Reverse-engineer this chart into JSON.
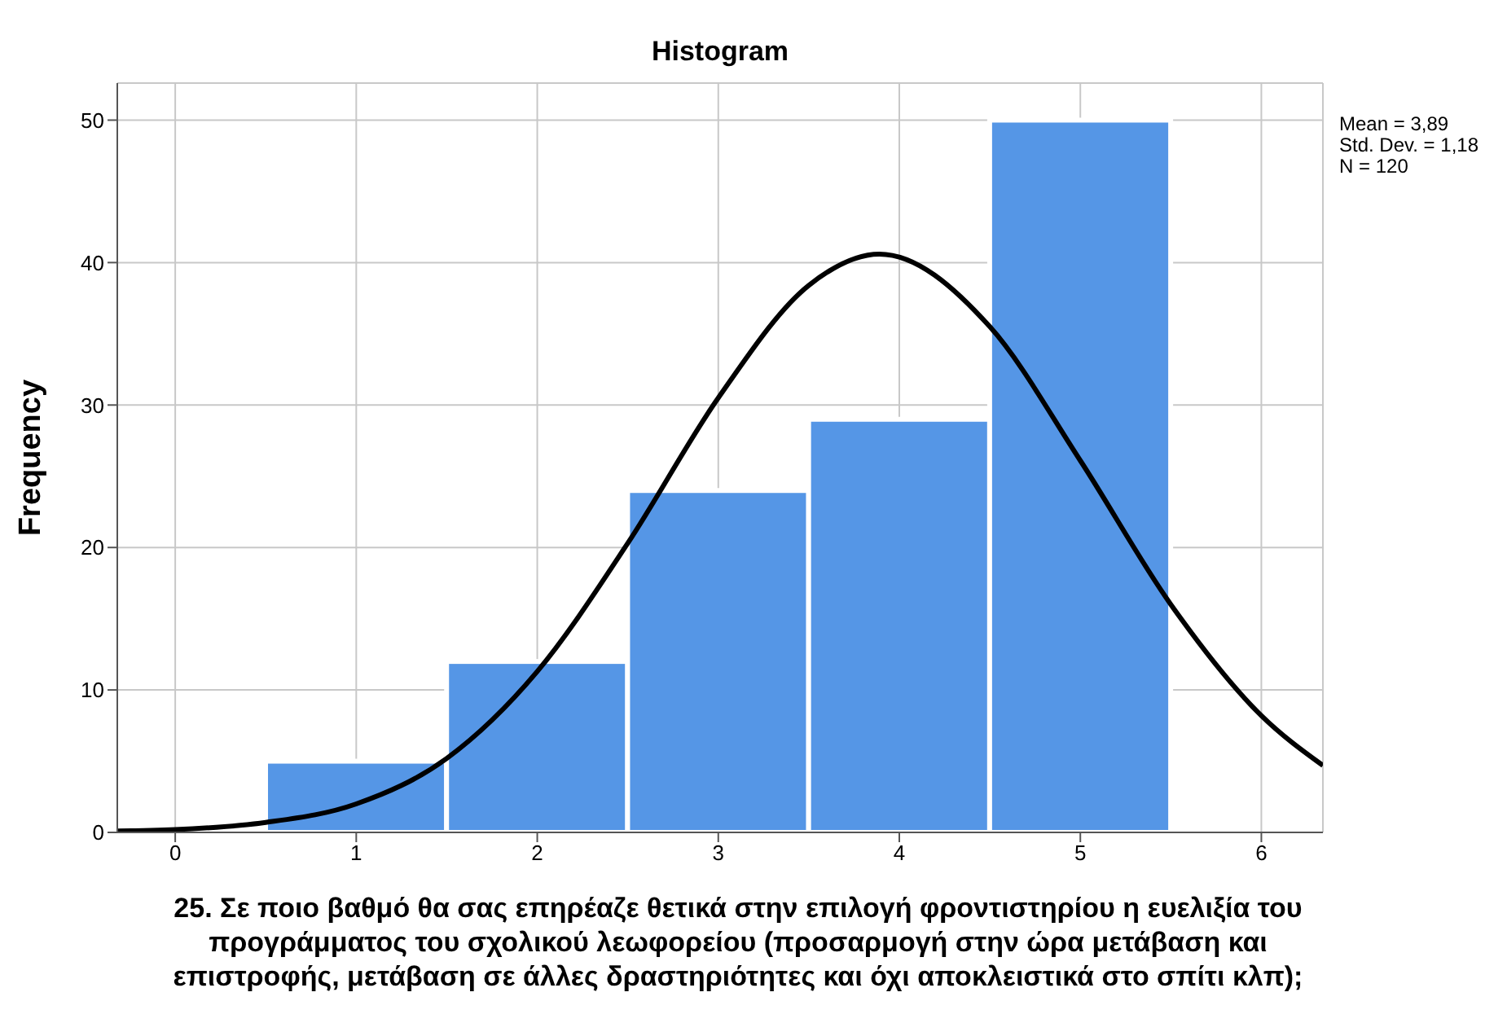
{
  "chart_data": {
    "type": "histogram",
    "title": "Histogram",
    "xlabel": "25. Σε ποιο βαθμό θα σας επηρέαζε θετικά στην επιλογή φροντιστηρίου η ευελιξία του προγράμματος του σχολικού λεωφορείου (προσαρμογή στην ώρα μετάβαση και επιστροφής, μετάβαση σε άλλες δραστηριότητες και όχι αποκλειστικά στο σπίτι κλπ);",
    "ylabel": "Frequency",
    "bins": [
      0.5,
      1.5,
      2.5,
      3.5,
      4.5,
      5.5
    ],
    "series": [
      {
        "color": "#5596e6",
        "values": [
          5,
          12,
          24,
          29,
          50
        ]
      },
      {
        "type": "line",
        "color": "#000000",
        "x": [
          -0.32,
          0,
          0.5,
          1,
          1.5,
          2,
          2.5,
          3,
          3.5,
          3.89,
          4.5,
          5,
          5.5,
          6,
          6.34
        ],
        "values": [
          0.1,
          0.2,
          0.7,
          2,
          5.2,
          11.3,
          20.3,
          30.5,
          38.4,
          40.6,
          35.5,
          26.1,
          16,
          8.2,
          4.7
        ]
      }
    ],
    "xlim": [
      -0.32,
      6.34
    ],
    "xticks": [
      0,
      1,
      2,
      3,
      4,
      5,
      6
    ],
    "ylim": [
      0,
      52.6
    ],
    "yticks": [
      0,
      10,
      20,
      30,
      40,
      50
    ],
    "grid": true,
    "marker": "none",
    "line_style": "solid",
    "annotations": [
      "Mean = 3,89",
      "Std. Dev. = 1,18",
      "N = 120"
    ]
  }
}
